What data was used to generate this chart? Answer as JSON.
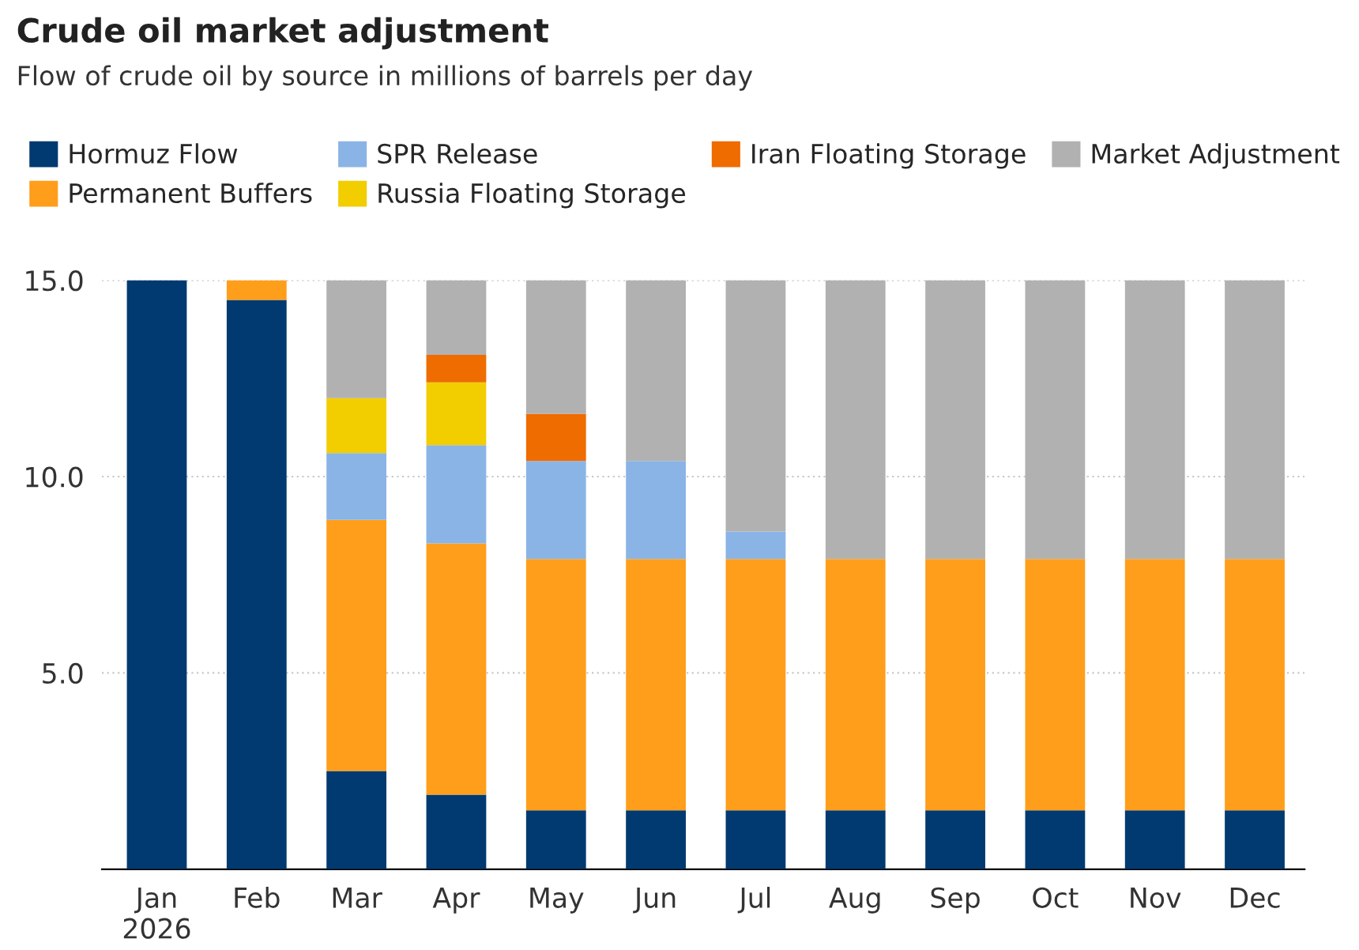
{
  "chart_data": {
    "type": "bar",
    "title": "Crude oil market adjustment",
    "subtitle": "Flow of crude oil by source in millions of barrels per day",
    "categories": [
      "Jan\n2026",
      "Feb",
      "Mar",
      "Apr",
      "May",
      "Jun",
      "Jul",
      "Aug",
      "Sep",
      "Oct",
      "Nov",
      "Dec"
    ],
    "stacked": true,
    "series": [
      {
        "name": "Hormuz Flow",
        "color": "#003a70",
        "values": [
          15,
          14.5,
          2.5,
          1.9,
          1.5,
          1.5,
          1.5,
          1.5,
          1.5,
          1.5,
          1.5,
          1.5
        ]
      },
      {
        "name": "Permanent Buffers",
        "color": "#ff9e1b",
        "values": [
          null,
          0.5,
          6.4,
          6.4,
          6.4,
          6.4,
          6.4,
          6.4,
          6.4,
          6.4,
          6.4,
          6.4
        ]
      },
      {
        "name": "SPR Release",
        "color": "#8ab4e6",
        "values": [
          null,
          null,
          1.7,
          2.5,
          2.5,
          2.5,
          0.7,
          null,
          null,
          null,
          null,
          null
        ]
      },
      {
        "name": "Russia Floating Storage",
        "color": "#f2cd00",
        "values": [
          null,
          null,
          1.4,
          1.6,
          null,
          null,
          null,
          null,
          null,
          null,
          null,
          null
        ]
      },
      {
        "name": "Iran Floating Storage",
        "color": "#ee6c00",
        "values": [
          null,
          null,
          null,
          0.7,
          1.2,
          null,
          null,
          null,
          null,
          null,
          null,
          null
        ]
      },
      {
        "name": "Market Adjustment",
        "color": "#b1b1b1",
        "values": [
          null,
          null,
          3.0,
          1.9,
          3.4,
          4.6,
          6.4,
          7.1,
          7.1,
          7.1,
          7.1,
          7.1
        ]
      }
    ],
    "ylim": [
      0,
      15
    ],
    "yticks": [
      {
        "value": 5,
        "label": "5.0"
      },
      {
        "value": 10,
        "label": "10.0"
      },
      {
        "value": 15,
        "label": "15.0"
      }
    ],
    "grid": "y",
    "legend": "top"
  }
}
